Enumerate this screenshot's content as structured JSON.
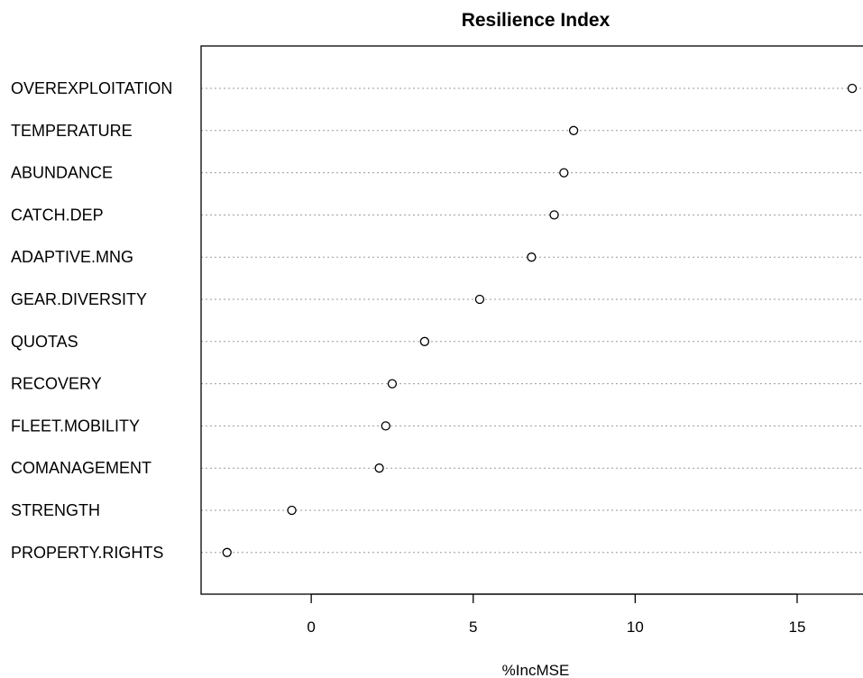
{
  "chart_data": {
    "type": "scatter",
    "title": "Resilience Index",
    "xlabel": "%IncMSE",
    "ylabel": "",
    "categories": [
      "OVEREXPLOITATION",
      "TEMPERATURE",
      "ABUNDANCE",
      "CATCH.DEP",
      "ADAPTIVE.MNG",
      "GEAR.DIVERSITY",
      "QUOTAS",
      "RECOVERY",
      "FLEET.MOBILITY",
      "COMANAGEMENT",
      "STRENGTH",
      "PROPERTY.RIGHTS"
    ],
    "values": [
      16.7,
      8.1,
      7.8,
      7.5,
      6.8,
      5.2,
      3.5,
      2.5,
      2.3,
      2.1,
      -0.6,
      -2.6
    ],
    "xlim": [
      -3.4,
      17.2
    ],
    "x_ticks": [
      0,
      5,
      10,
      15
    ],
    "x_tick_labels": [
      "0",
      "5",
      "10",
      "15"
    ],
    "grid": "dotted horizontal guide lines per row",
    "marker": "open circle"
  }
}
